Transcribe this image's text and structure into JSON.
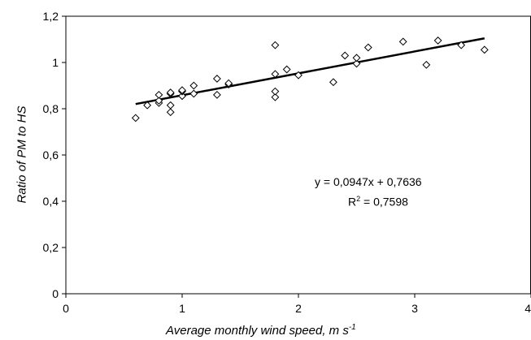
{
  "chart_data": {
    "type": "scatter",
    "xlabel": "Average monthly wind speed, m s",
    "xlabel_superscript": "-1",
    "ylabel": "Ratio of PM to HS",
    "xlim": [
      0,
      4
    ],
    "ylim": [
      0,
      1.2
    ],
    "x_ticks": [
      "0",
      "1",
      "2",
      "3",
      "4"
    ],
    "y_ticks": [
      "0",
      "0,2",
      "0,4",
      "0,6",
      "0,8",
      "1",
      "1,2"
    ],
    "grid": false,
    "legend": "none",
    "marker": "diamond",
    "points": [
      {
        "x": 0.6,
        "y": 0.76
      },
      {
        "x": 0.7,
        "y": 0.815
      },
      {
        "x": 0.8,
        "y": 0.825
      },
      {
        "x": 0.8,
        "y": 0.835
      },
      {
        "x": 0.8,
        "y": 0.86
      },
      {
        "x": 0.9,
        "y": 0.785
      },
      {
        "x": 0.9,
        "y": 0.815
      },
      {
        "x": 0.9,
        "y": 0.865
      },
      {
        "x": 0.9,
        "y": 0.87
      },
      {
        "x": 1.0,
        "y": 0.855
      },
      {
        "x": 1.0,
        "y": 0.875
      },
      {
        "x": 1.0,
        "y": 0.88
      },
      {
        "x": 1.1,
        "y": 0.865
      },
      {
        "x": 1.1,
        "y": 0.9
      },
      {
        "x": 1.3,
        "y": 0.86
      },
      {
        "x": 1.3,
        "y": 0.93
      },
      {
        "x": 1.4,
        "y": 0.905
      },
      {
        "x": 1.4,
        "y": 0.91
      },
      {
        "x": 1.8,
        "y": 0.85
      },
      {
        "x": 1.8,
        "y": 0.875
      },
      {
        "x": 1.8,
        "y": 0.95
      },
      {
        "x": 1.8,
        "y": 1.075
      },
      {
        "x": 1.9,
        "y": 0.97
      },
      {
        "x": 2.0,
        "y": 0.945
      },
      {
        "x": 2.3,
        "y": 0.915
      },
      {
        "x": 2.4,
        "y": 1.03
      },
      {
        "x": 2.5,
        "y": 0.995
      },
      {
        "x": 2.5,
        "y": 1.02
      },
      {
        "x": 2.6,
        "y": 1.065
      },
      {
        "x": 2.9,
        "y": 1.09
      },
      {
        "x": 3.1,
        "y": 0.99
      },
      {
        "x": 3.2,
        "y": 1.095
      },
      {
        "x": 3.4,
        "y": 1.075
      },
      {
        "x": 3.6,
        "y": 1.055
      }
    ],
    "trendline": {
      "slope": 0.0947,
      "intercept": 0.7636,
      "x_range": [
        0.6,
        3.6
      ]
    },
    "annotation": {
      "equation": "y = 0,0947x + 0,7636",
      "r2_prefix": "R",
      "r2_sup": "2",
      "r2_value": " = 0,7598"
    },
    "colors": {
      "marker": "#000000",
      "line": "#000000",
      "axis": "#000000"
    }
  }
}
